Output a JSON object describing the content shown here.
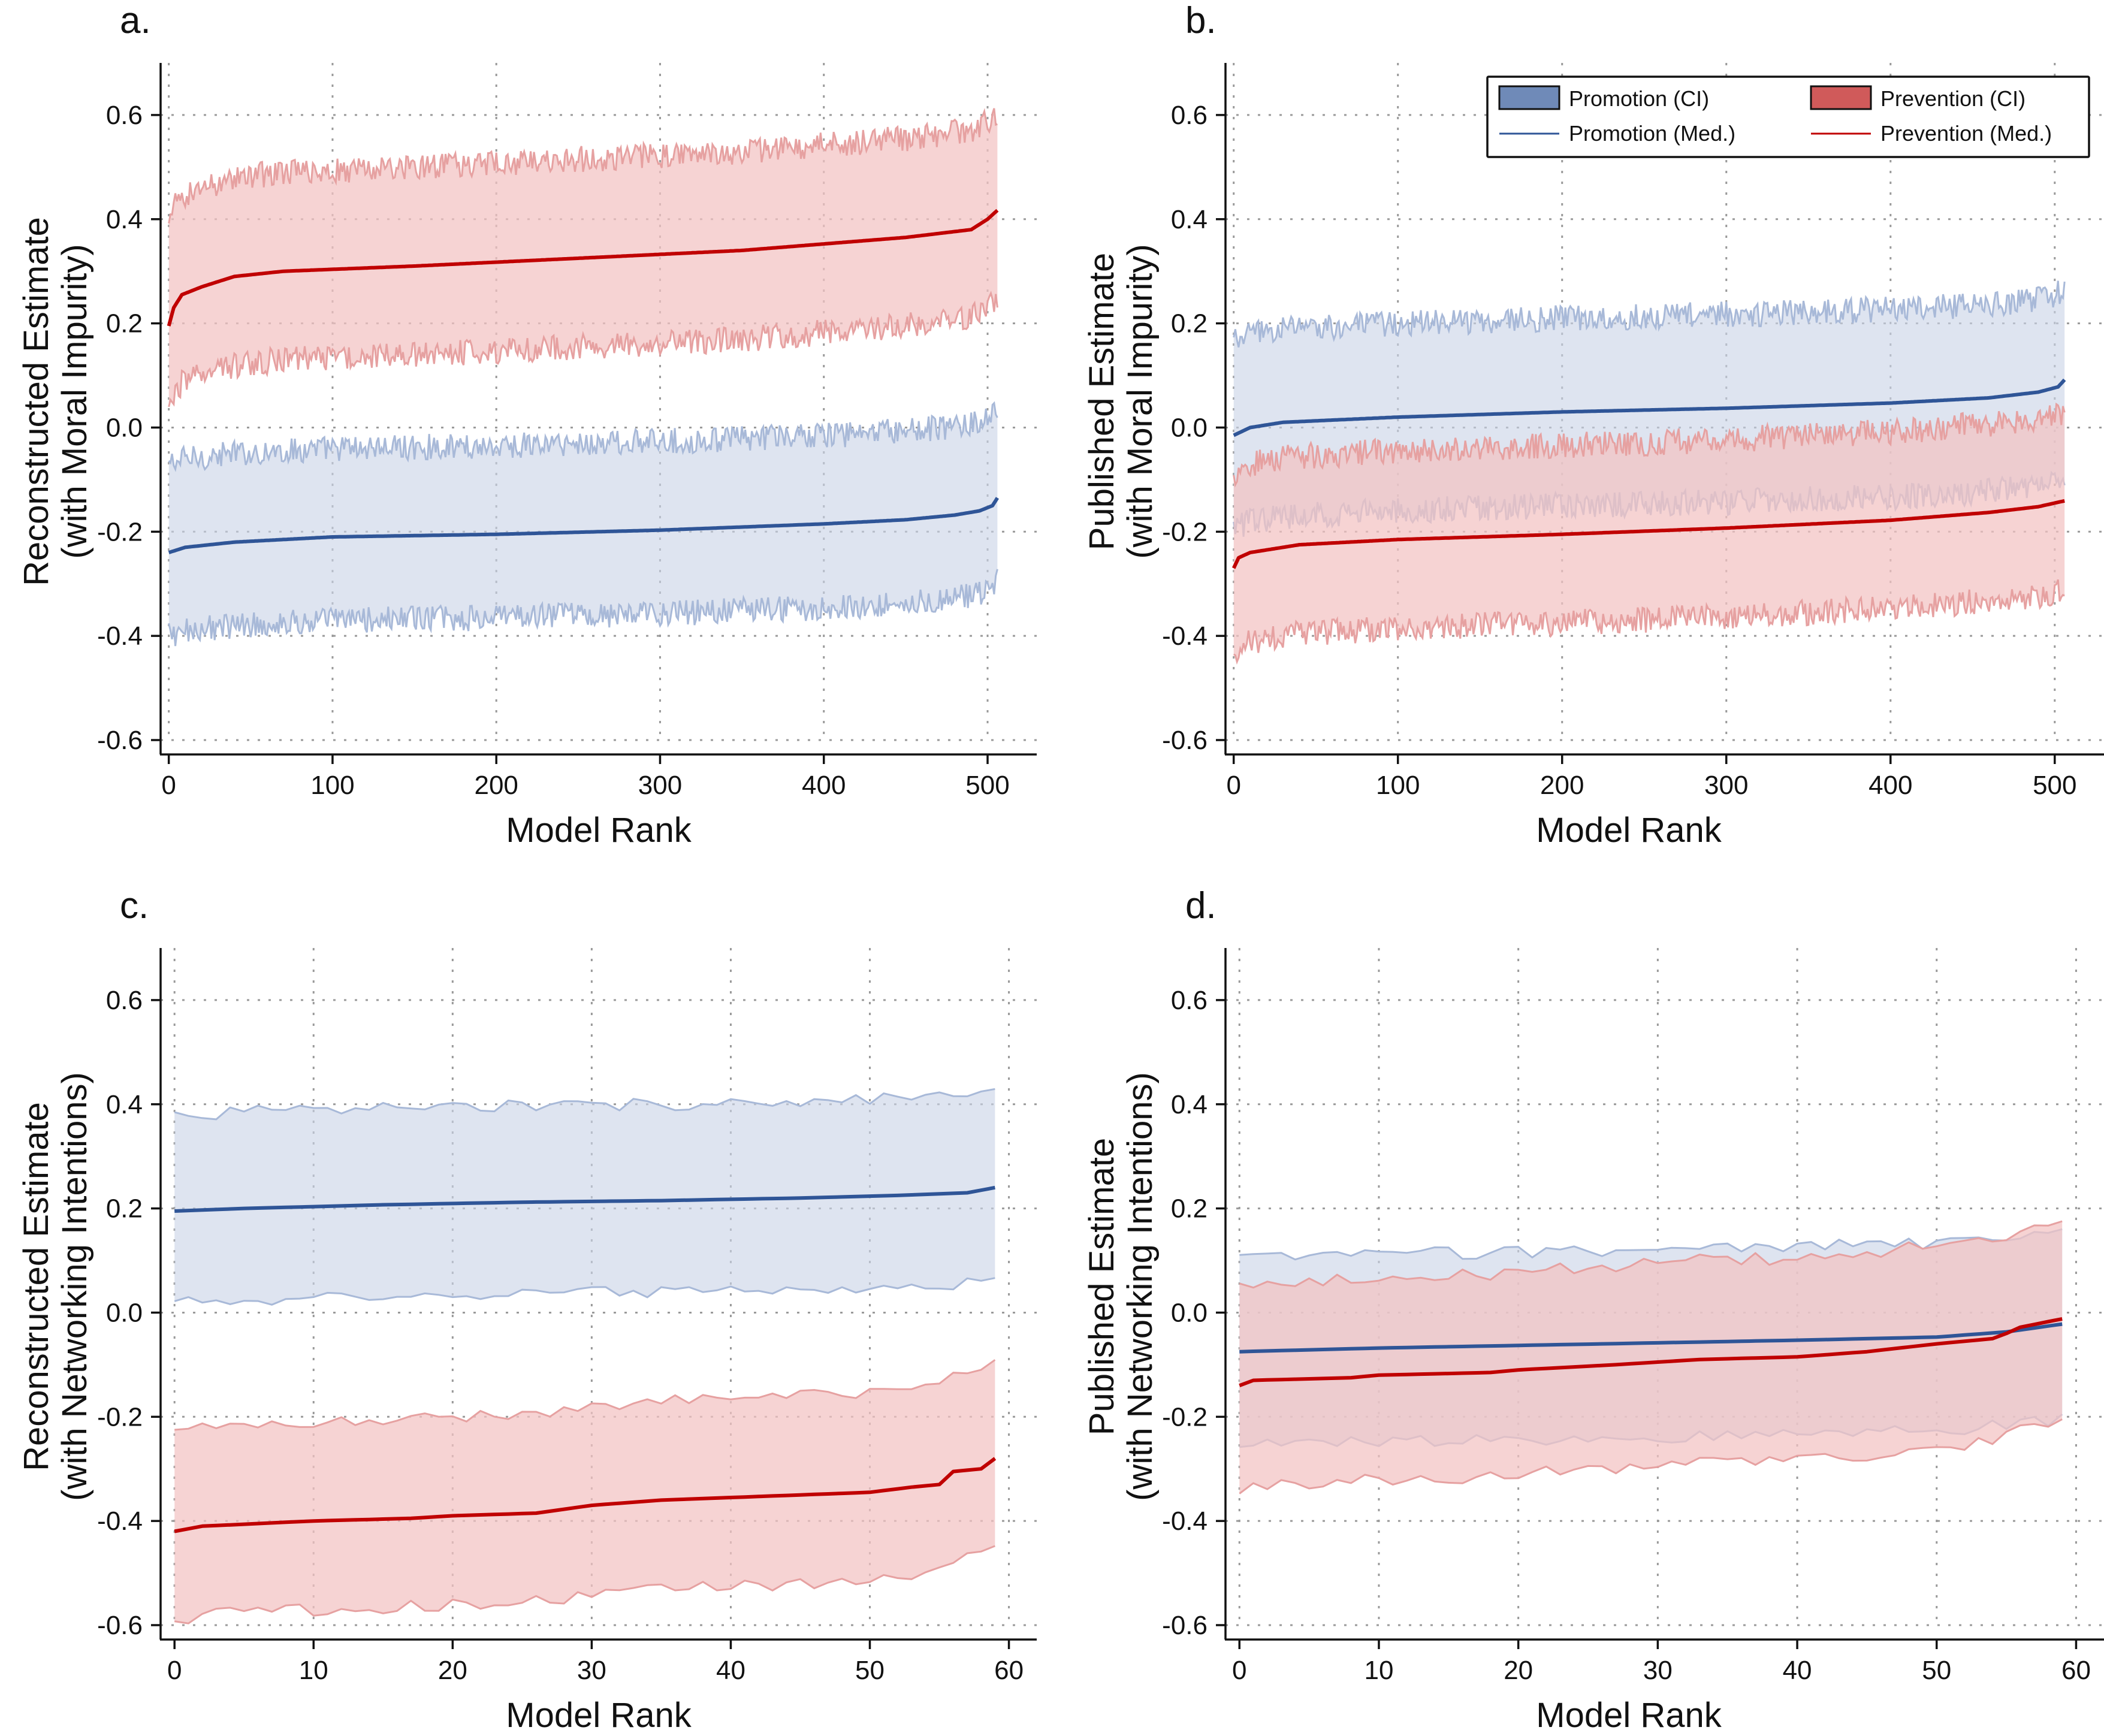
{
  "colors": {
    "promotion_line": "#2f5597",
    "promotion_fill": "#c9d3e6",
    "promotion_edge": "#a8b9d8",
    "prevention_line": "#c00000",
    "prevention_fill": "#f3c2c2",
    "prevention_edge": "#e6a1a1",
    "legend_promotion_patch": "#6f8ab8",
    "legend_prevention_patch": "#d05a5a"
  },
  "legend": {
    "promotion_ci": "Promotion (CI)",
    "prevention_ci": "Prevention (CI)",
    "promotion_med": "Promotion (Med.)",
    "prevention_med": "Prevention (Med.)"
  },
  "chart_data": [
    {
      "id": "a",
      "panel_label": "a.",
      "type": "area",
      "xlabel": "Model Rank",
      "ylabel": [
        "Reconstructed Estimate",
        "(with Moral Impurity)"
      ],
      "xlim": [
        -5,
        530
      ],
      "ylim": [
        -0.6,
        0.7
      ],
      "xticks": [
        0,
        100,
        200,
        300,
        400,
        500
      ],
      "yticks": [
        0.6,
        0.4,
        0.2,
        0.0,
        -0.2,
        -0.4,
        -0.6
      ],
      "ytick_labels": [
        "0.6",
        "0.4",
        "0.2",
        "0.0",
        "-0.2",
        "-0.4",
        "-0.6"
      ],
      "n": 507,
      "noise": 0.025,
      "series": [
        {
          "name": "Promotion",
          "median_knots": [
            [
              0,
              -0.24
            ],
            [
              10,
              -0.23
            ],
            [
              40,
              -0.22
            ],
            [
              100,
              -0.21
            ],
            [
              200,
              -0.205
            ],
            [
              300,
              -0.197
            ],
            [
              400,
              -0.185
            ],
            [
              450,
              -0.177
            ],
            [
              480,
              -0.168
            ],
            [
              495,
              -0.16
            ],
            [
              503,
              -0.15
            ],
            [
              507,
              -0.13
            ]
          ],
          "lower_offset": -0.16,
          "upper_offset": 0.17
        },
        {
          "name": "Prevention",
          "median_knots": [
            [
              0,
              0.195
            ],
            [
              3,
              0.23
            ],
            [
              8,
              0.255
            ],
            [
              20,
              0.27
            ],
            [
              40,
              0.29
            ],
            [
              70,
              0.3
            ],
            [
              150,
              0.31
            ],
            [
              250,
              0.325
            ],
            [
              350,
              0.34
            ],
            [
              450,
              0.365
            ],
            [
              490,
              0.38
            ],
            [
              500,
              0.4
            ],
            [
              507,
              0.42
            ]
          ],
          "lower_offset": -0.17,
          "upper_offset": 0.19
        }
      ]
    },
    {
      "id": "b",
      "panel_label": "b.",
      "type": "area",
      "xlabel": "Model Rank",
      "ylabel": [
        "Published Estimate",
        "(with Moral Impurity)"
      ],
      "xlim": [
        -5,
        530
      ],
      "ylim": [
        -0.6,
        0.7
      ],
      "xticks": [
        0,
        100,
        200,
        300,
        400,
        500
      ],
      "yticks": [
        0.6,
        0.4,
        0.2,
        0.0,
        -0.2,
        -0.4,
        -0.6
      ],
      "ytick_labels": [
        "0.6",
        "0.4",
        "0.2",
        "0.0",
        "-0.2",
        "-0.4",
        "-0.6"
      ],
      "n": 507,
      "noise": 0.025,
      "legend_position": "top-right",
      "series": [
        {
          "name": "Promotion",
          "median_knots": [
            [
              0,
              -0.015
            ],
            [
              10,
              0.0
            ],
            [
              30,
              0.01
            ],
            [
              100,
              0.02
            ],
            [
              200,
              0.03
            ],
            [
              300,
              0.037
            ],
            [
              400,
              0.047
            ],
            [
              460,
              0.057
            ],
            [
              490,
              0.068
            ],
            [
              502,
              0.078
            ],
            [
              507,
              0.095
            ]
          ],
          "lower_offset": -0.18,
          "upper_offset": 0.18
        },
        {
          "name": "Prevention",
          "median_knots": [
            [
              0,
              -0.27
            ],
            [
              3,
              -0.25
            ],
            [
              10,
              -0.24
            ],
            [
              40,
              -0.225
            ],
            [
              100,
              -0.215
            ],
            [
              200,
              -0.205
            ],
            [
              300,
              -0.193
            ],
            [
              400,
              -0.178
            ],
            [
              460,
              -0.163
            ],
            [
              490,
              -0.152
            ],
            [
              507,
              -0.14
            ]
          ],
          "lower_offset": -0.17,
          "upper_offset": 0.17
        }
      ]
    },
    {
      "id": "c",
      "panel_label": "c.",
      "type": "area",
      "xlabel": "Model Rank",
      "ylabel": [
        "Reconstructed Estimate",
        "(with Networking Intentions)"
      ],
      "xlim": [
        -1,
        62
      ],
      "ylim": [
        -0.6,
        0.7
      ],
      "xticks": [
        0,
        10,
        20,
        30,
        40,
        50,
        60
      ],
      "yticks": [
        0.6,
        0.4,
        0.2,
        0.0,
        -0.2,
        -0.4,
        -0.6
      ],
      "ytick_labels": [
        "0.6",
        "0.4",
        "0.2",
        "0.0",
        "-0.2",
        "-0.4",
        "-0.6"
      ],
      "n": 60,
      "noise": 0.012,
      "series": [
        {
          "name": "Promotion",
          "median_knots": [
            [
              0,
              0.195
            ],
            [
              5,
              0.2
            ],
            [
              15,
              0.207
            ],
            [
              25,
              0.212
            ],
            [
              35,
              0.215
            ],
            [
              45,
              0.22
            ],
            [
              52,
              0.225
            ],
            [
              57,
              0.23
            ],
            [
              59,
              0.24
            ]
          ],
          "lower_offset": -0.175,
          "upper_offset": 0.185
        },
        {
          "name": "Prevention",
          "median_knots": [
            [
              0,
              -0.42
            ],
            [
              2,
              -0.41
            ],
            [
              10,
              -0.4
            ],
            [
              17,
              -0.395
            ],
            [
              20,
              -0.39
            ],
            [
              26,
              -0.385
            ],
            [
              30,
              -0.37
            ],
            [
              35,
              -0.36
            ],
            [
              45,
              -0.35
            ],
            [
              50,
              -0.345
            ],
            [
              53,
              -0.335
            ],
            [
              55,
              -0.33
            ],
            [
              56,
              -0.305
            ],
            [
              58,
              -0.3
            ],
            [
              59,
              -0.28
            ]
          ],
          "lower_offset": -0.17,
          "upper_offset": 0.19
        }
      ]
    },
    {
      "id": "d",
      "panel_label": "d.",
      "type": "area",
      "xlabel": "Model Rank",
      "ylabel": [
        "Published Estimate",
        "(with Networking Intentions)"
      ],
      "xlim": [
        -1,
        62
      ],
      "ylim": [
        -0.6,
        0.7
      ],
      "xticks": [
        0,
        10,
        20,
        30,
        40,
        50,
        60
      ],
      "yticks": [
        0.6,
        0.4,
        0.2,
        0.0,
        -0.2,
        -0.4,
        -0.6
      ],
      "ytick_labels": [
        "0.6",
        "0.4",
        "0.2",
        "0.0",
        "-0.2",
        "-0.4",
        "-0.6"
      ],
      "n": 60,
      "noise": 0.012,
      "series": [
        {
          "name": "Promotion",
          "median_knots": [
            [
              0,
              -0.075
            ],
            [
              10,
              -0.068
            ],
            [
              20,
              -0.063
            ],
            [
              30,
              -0.058
            ],
            [
              40,
              -0.053
            ],
            [
              50,
              -0.047
            ],
            [
              55,
              -0.037
            ],
            [
              59,
              -0.022
            ]
          ],
          "lower_offset": -0.18,
          "upper_offset": 0.18
        },
        {
          "name": "Prevention",
          "median_knots": [
            [
              0,
              -0.14
            ],
            [
              1,
              -0.13
            ],
            [
              8,
              -0.125
            ],
            [
              10,
              -0.12
            ],
            [
              18,
              -0.115
            ],
            [
              20,
              -0.11
            ],
            [
              27,
              -0.1
            ],
            [
              30,
              -0.095
            ],
            [
              33,
              -0.09
            ],
            [
              40,
              -0.085
            ],
            [
              45,
              -0.075
            ],
            [
              50,
              -0.06
            ],
            [
              54,
              -0.05
            ],
            [
              55,
              -0.04
            ],
            [
              56,
              -0.028
            ],
            [
              59,
              -0.012
            ]
          ],
          "lower_offset": -0.2,
          "upper_offset": 0.19
        }
      ]
    }
  ]
}
